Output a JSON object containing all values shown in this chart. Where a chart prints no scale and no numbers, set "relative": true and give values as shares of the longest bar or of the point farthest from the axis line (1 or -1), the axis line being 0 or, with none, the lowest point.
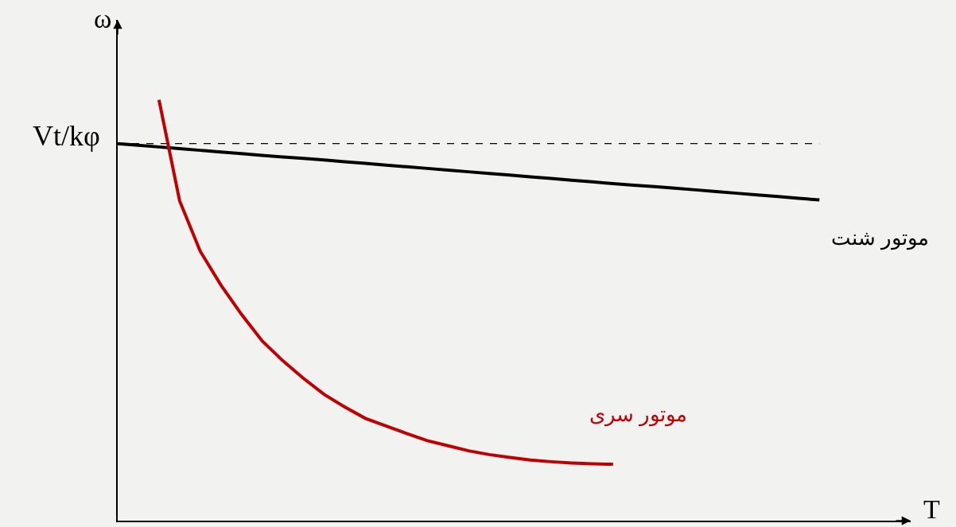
{
  "chart_data": {
    "type": "line",
    "relative": true,
    "xlabel": "T",
    "ylabel": "ω",
    "grid": false,
    "legend": false,
    "marker": "none",
    "line_style": "solid",
    "categories": [
      null,
      null,
      null,
      null,
      null,
      null,
      null,
      null,
      null,
      null,
      null,
      null,
      null,
      null,
      null,
      null,
      null,
      null,
      null,
      null,
      null,
      null,
      null,
      null,
      null,
      null,
      null,
      null,
      null,
      null,
      null,
      null,
      null,
      null,
      null
    ],
    "series": [
      {
        "name": "موتور شنت",
        "color": "#000000",
        "values": [
          0.896,
          0.892,
          0.888,
          0.884,
          0.88,
          0.876,
          0.872,
          0.868,
          0.864,
          0.861,
          0.857,
          0.853,
          0.849,
          0.845,
          0.841,
          0.837,
          0.833,
          0.829,
          0.825,
          0.821,
          0.817,
          0.813,
          0.809,
          0.805,
          0.801,
          0.797,
          0.794,
          0.79,
          0.786,
          0.782,
          0.778,
          0.774,
          0.77,
          0.766,
          0.762
        ]
      },
      {
        "name": "موتور سری",
        "color": "#c00000",
        "values": [
          null,
          null,
          1.0,
          0.76,
          0.64,
          0.56,
          0.49,
          0.427,
          0.38,
          0.338,
          0.3,
          0.27,
          0.243,
          0.225,
          0.207,
          0.19,
          0.178,
          0.166,
          0.157,
          0.15,
          0.144,
          0.14,
          0.137,
          0.135,
          0.134,
          null,
          null,
          null,
          null,
          null,
          null,
          null,
          null,
          null,
          null
        ]
      }
    ],
    "ref_lines": [
      {
        "axis": "y",
        "value": 0.896,
        "label": "Vt/kφ",
        "color": "#000000",
        "line_style": "dashed"
      }
    ]
  }
}
